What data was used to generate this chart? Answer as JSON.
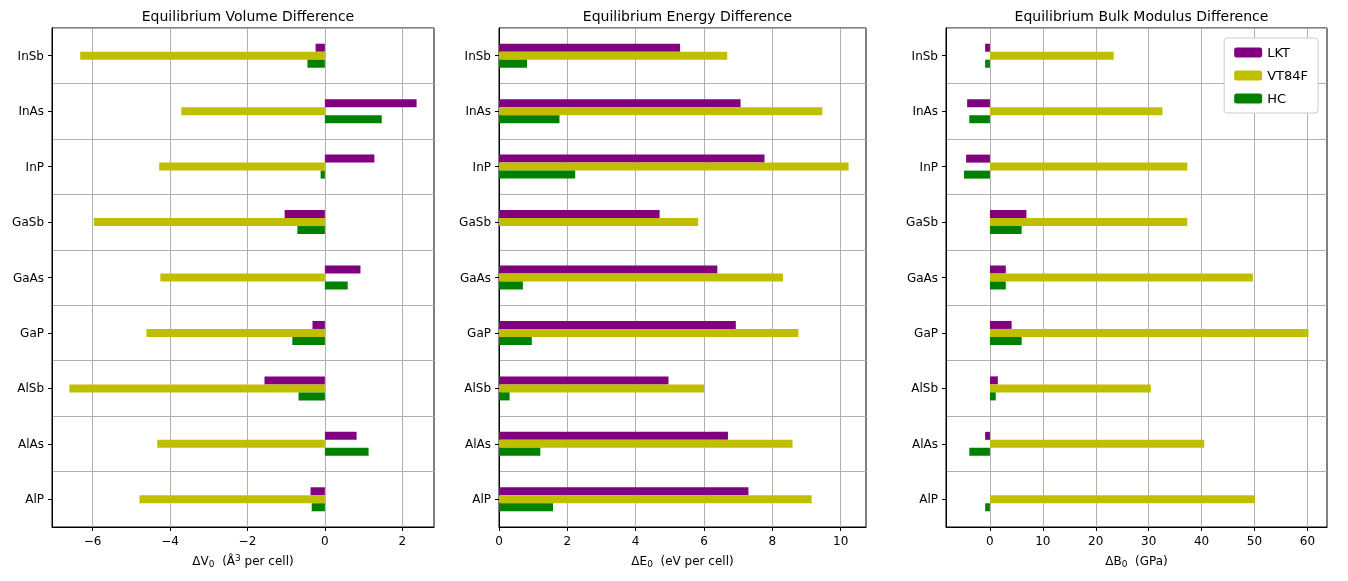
{
  "chart_data": [
    {
      "type": "bar",
      "orientation": "horizontal",
      "title": "Equilibrium Volume Difference",
      "xlabel": "ΔV$_{0}$  (Å$^{3}$ per cell)",
      "categories": [
        "InSb",
        "InAs",
        "InP",
        "GaSb",
        "GaAs",
        "GaP",
        "AlSb",
        "AlAs",
        "AlP"
      ],
      "series": [
        {
          "color": "#800080",
          "values": [
            -0.24,
            2.37,
            1.28,
            -1.04,
            0.92,
            -0.32,
            -1.56,
            0.82,
            -0.37
          ]
        },
        {
          "color": "#bfbf00",
          "values": [
            -6.32,
            -3.71,
            -4.28,
            -5.97,
            -4.25,
            -4.61,
            -6.6,
            -4.33,
            -4.79
          ]
        },
        {
          "color": "#008000",
          "values": [
            -0.45,
            1.47,
            -0.11,
            -0.71,
            0.59,
            -0.84,
            -0.68,
            1.13,
            -0.34
          ]
        }
      ],
      "xlim": [
        -7.05,
        2.82
      ],
      "xticks": [
        {
          "value": -6,
          "label": "−6"
        },
        {
          "value": -4,
          "label": "−4"
        },
        {
          "value": -2,
          "label": "−2"
        },
        0,
        2
      ],
      "grid": true,
      "legend": false
    },
    {
      "type": "bar",
      "orientation": "horizontal",
      "title": "Equilibrium Energy Difference",
      "xlabel": "ΔE$_{0}$  (eV per cell)",
      "categories": [
        "InSb",
        "InAs",
        "InP",
        "GaSb",
        "GaAs",
        "GaP",
        "AlSb",
        "AlAs",
        "AlP"
      ],
      "series": [
        {
          "color": "#800080",
          "values": [
            5.3,
            7.07,
            7.77,
            4.7,
            6.39,
            6.93,
            4.96,
            6.7,
            7.3
          ]
        },
        {
          "color": "#bfbf00",
          "values": [
            6.68,
            9.46,
            10.23,
            5.83,
            8.31,
            8.76,
            6.0,
            8.59,
            9.15
          ]
        },
        {
          "color": "#008000",
          "values": [
            0.82,
            1.77,
            2.23,
            0,
            0.7,
            0.96,
            0.31,
            1.21,
            1.58
          ]
        }
      ],
      "xlim": [
        0,
        10.74
      ],
      "xticks": [
        0,
        2,
        4,
        6,
        8,
        10
      ],
      "grid": true,
      "legend": false
    },
    {
      "type": "bar",
      "orientation": "horizontal",
      "title": "Equilibrium Bulk Modulus Difference",
      "xlabel": "ΔB$_{0}$  (GPa)",
      "categories": [
        "InSb",
        "InAs",
        "InP",
        "GaSb",
        "GaAs",
        "GaP",
        "AlSb",
        "AlAs",
        "AlP"
      ],
      "series": [
        {
          "name": "LKT",
          "color": "#800080",
          "values": [
            -0.9,
            -4.3,
            -4.5,
            6.9,
            3.0,
            4.1,
            1.5,
            -0.9,
            0
          ]
        },
        {
          "name": "VT84F",
          "color": "#bfbf00",
          "values": [
            23.4,
            32.6,
            37.3,
            37.3,
            49.7,
            60.2,
            30.4,
            40.5,
            50.1
          ]
        },
        {
          "name": "HC",
          "color": "#008000",
          "values": [
            -0.9,
            -3.9,
            -4.9,
            6.0,
            3.0,
            6.0,
            1.1,
            -3.9,
            -0.9
          ]
        }
      ],
      "xlim": [
        -8.3,
        63.7
      ],
      "xticks": [
        0,
        10,
        20,
        30,
        40,
        50,
        60
      ],
      "grid": true,
      "legend": "top right"
    }
  ]
}
